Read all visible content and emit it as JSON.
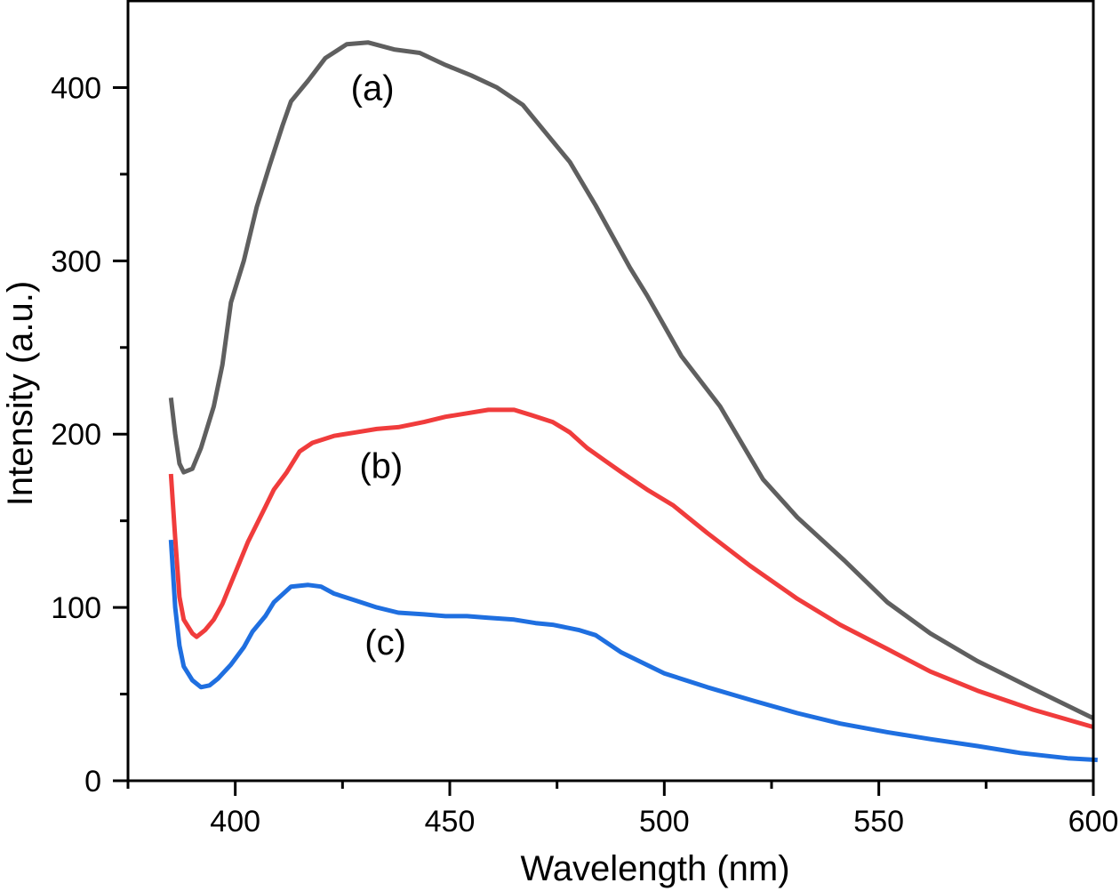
{
  "chart_data": {
    "type": "line",
    "title": "",
    "xlabel": "Wavelength (nm)",
    "ylabel": "Intensity (a.u.)",
    "xlim": [
      375,
      600
    ],
    "ylim": [
      0,
      450
    ],
    "grid": false,
    "legend": "none",
    "x_ticks": [
      400,
      450,
      500,
      550,
      600
    ],
    "x_tick_labels": [
      "400",
      "450",
      "500",
      "550",
      "600"
    ],
    "x_minor_ticks": [
      375,
      425,
      475,
      525,
      575
    ],
    "y_ticks": [
      0,
      100,
      200,
      300,
      400
    ],
    "y_tick_labels": [
      "0",
      "100",
      "200",
      "300",
      "400"
    ],
    "y_minor_ticks": [
      50,
      150,
      250,
      350
    ],
    "series": [
      {
        "name": "(a)",
        "color": "#5f5f5f",
        "label_at": [
          432,
          400
        ],
        "points": [
          [
            385,
            221
          ],
          [
            386,
            200
          ],
          [
            387,
            183
          ],
          [
            388,
            178
          ],
          [
            390,
            180
          ],
          [
            392,
            192
          ],
          [
            395,
            216
          ],
          [
            397,
            240
          ],
          [
            399,
            276
          ],
          [
            402,
            300
          ],
          [
            405,
            331
          ],
          [
            408,
            355
          ],
          [
            411,
            378
          ],
          [
            413,
            392
          ],
          [
            417,
            404
          ],
          [
            421,
            417
          ],
          [
            426,
            425
          ],
          [
            431,
            426
          ],
          [
            437,
            422
          ],
          [
            443,
            420
          ],
          [
            449,
            413
          ],
          [
            455,
            407
          ],
          [
            461,
            400
          ],
          [
            467,
            390
          ],
          [
            472,
            375
          ],
          [
            478,
            357
          ],
          [
            484,
            332
          ],
          [
            492,
            296
          ],
          [
            496,
            280
          ],
          [
            504,
            245
          ],
          [
            513,
            216
          ],
          [
            523,
            174
          ],
          [
            531,
            152
          ],
          [
            542,
            127
          ],
          [
            552,
            103
          ],
          [
            562,
            85
          ],
          [
            573,
            69
          ],
          [
            586,
            53
          ],
          [
            600,
            36
          ]
        ]
      },
      {
        "name": "(b)",
        "color": "#f03c3c",
        "label_at": [
          434,
          182
        ],
        "points": [
          [
            385,
            177
          ],
          [
            386,
            140
          ],
          [
            387,
            106
          ],
          [
            388,
            93
          ],
          [
            390,
            85
          ],
          [
            391,
            83
          ],
          [
            393,
            87
          ],
          [
            395,
            93
          ],
          [
            397,
            102
          ],
          [
            400,
            120
          ],
          [
            403,
            138
          ],
          [
            407,
            158
          ],
          [
            409,
            168
          ],
          [
            412,
            178
          ],
          [
            415,
            190
          ],
          [
            418,
            195
          ],
          [
            423,
            199
          ],
          [
            428,
            201
          ],
          [
            433,
            203
          ],
          [
            438,
            204
          ],
          [
            444,
            207
          ],
          [
            449,
            210
          ],
          [
            454,
            212
          ],
          [
            459,
            214
          ],
          [
            465,
            214
          ],
          [
            469,
            211
          ],
          [
            474,
            207
          ],
          [
            478,
            201
          ],
          [
            482,
            192
          ],
          [
            486,
            185
          ],
          [
            490,
            178
          ],
          [
            496,
            168
          ],
          [
            502,
            159
          ],
          [
            510,
            143
          ],
          [
            520,
            124
          ],
          [
            531,
            105
          ],
          [
            541,
            90
          ],
          [
            552,
            76
          ],
          [
            562,
            63
          ],
          [
            573,
            52
          ],
          [
            586,
            41
          ],
          [
            600,
            31
          ]
        ]
      },
      {
        "name": "(c)",
        "color": "#1f6fe0",
        "label_at": [
          435,
          80
        ],
        "points": [
          [
            385,
            139
          ],
          [
            386,
            100
          ],
          [
            387,
            78
          ],
          [
            388,
            66
          ],
          [
            390,
            58
          ],
          [
            392,
            54
          ],
          [
            394,
            55
          ],
          [
            396,
            59
          ],
          [
            399,
            67
          ],
          [
            402,
            77
          ],
          [
            404,
            86
          ],
          [
            407,
            95
          ],
          [
            409,
            103
          ],
          [
            413,
            112
          ],
          [
            417,
            113
          ],
          [
            420,
            112
          ],
          [
            423,
            108
          ],
          [
            428,
            104
          ],
          [
            433,
            100
          ],
          [
            438,
            97
          ],
          [
            444,
            96
          ],
          [
            449,
            95
          ],
          [
            454,
            95
          ],
          [
            459,
            94
          ],
          [
            465,
            93
          ],
          [
            470,
            91
          ],
          [
            474,
            90
          ],
          [
            480,
            87
          ],
          [
            484,
            84
          ],
          [
            490,
            74
          ],
          [
            500,
            62
          ],
          [
            510,
            54
          ],
          [
            521,
            46
          ],
          [
            531,
            39
          ],
          [
            541,
            33
          ],
          [
            552,
            28
          ],
          [
            562,
            24
          ],
          [
            573,
            20
          ],
          [
            583,
            16
          ],
          [
            594,
            13
          ],
          [
            601,
            12
          ]
        ]
      }
    ]
  }
}
